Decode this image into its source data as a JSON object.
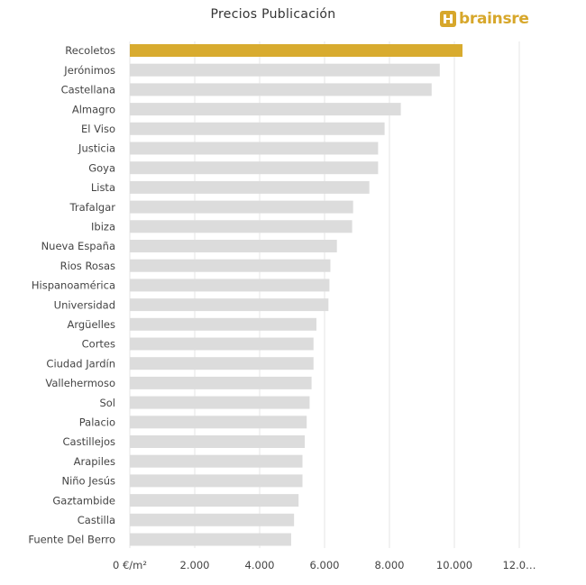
{
  "header": {
    "title": "Precios Publicación",
    "logo_text": "brainsre",
    "logo_icon": "brainsre-logo-icon"
  },
  "colors": {
    "highlight": "#d8ab2f",
    "bar": "#dcdcdc",
    "grid": "#e6e6e6",
    "text": "#444444",
    "brand": "#d7a72b"
  },
  "chart_data": {
    "type": "bar",
    "orientation": "horizontal",
    "title": "Precios Publicación",
    "xlabel": "",
    "ylabel": "",
    "unit": "€/m²",
    "xlim": [
      0,
      12000
    ],
    "tick_values": [
      0,
      2000,
      4000,
      6000,
      8000,
      10000,
      12000
    ],
    "tick_labels": [
      "0 €/m²",
      "2.000",
      "4.000",
      "6.000",
      "8.000",
      "10.000",
      "12.0…"
    ],
    "grid": true,
    "highlight_category": "Recoletos",
    "categories": [
      "Recoletos",
      "Jerónimos",
      "Castellana",
      "Almagro",
      "El Viso",
      "Justicia",
      "Goya",
      "Lista",
      "Trafalgar",
      "Ibiza",
      "Nueva España",
      "Rios Rosas",
      "Hispanoamérica",
      "Universidad",
      "Argüelles",
      "Cortes",
      "Ciudad Jardín",
      "Vallehermoso",
      "Sol",
      "Palacio",
      "Castillejos",
      "Arapiles",
      "Niño Jesús",
      "Gaztambide",
      "Castilla",
      "Fuente Del Berro"
    ],
    "values": [
      10250,
      9550,
      9300,
      8350,
      7850,
      7650,
      7650,
      7380,
      6880,
      6850,
      6380,
      6180,
      6150,
      6120,
      5750,
      5660,
      5660,
      5600,
      5540,
      5450,
      5390,
      5320,
      5320,
      5200,
      5060,
      4970
    ]
  }
}
